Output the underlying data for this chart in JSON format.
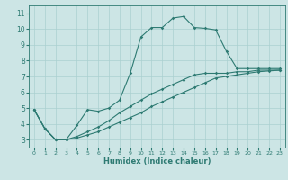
{
  "title": "",
  "xlabel": "Humidex (Indice chaleur)",
  "ylabel": "",
  "bg_color": "#cce5e5",
  "grid_color": "#aad0d0",
  "line_color": "#2d7a72",
  "xlim": [
    -0.5,
    23.5
  ],
  "ylim": [
    2.5,
    11.5
  ],
  "xticks": [
    0,
    1,
    2,
    3,
    4,
    5,
    6,
    7,
    8,
    9,
    10,
    11,
    12,
    13,
    14,
    15,
    16,
    17,
    18,
    19,
    20,
    21,
    22,
    23
  ],
  "yticks": [
    3,
    4,
    5,
    6,
    7,
    8,
    9,
    10,
    11
  ],
  "line1_x": [
    0,
    1,
    2,
    3,
    4,
    5,
    6,
    7,
    8,
    9,
    10,
    11,
    12,
    13,
    14,
    15,
    16,
    17,
    18,
    19,
    20,
    21,
    22,
    23
  ],
  "line1_y": [
    4.9,
    3.7,
    3.0,
    3.0,
    3.9,
    4.9,
    4.8,
    5.0,
    5.5,
    7.2,
    9.5,
    10.1,
    10.1,
    10.7,
    10.8,
    10.1,
    10.05,
    9.95,
    8.6,
    7.5,
    7.5,
    7.5,
    7.5,
    7.5
  ],
  "line2_x": [
    0,
    1,
    2,
    3,
    4,
    5,
    6,
    7,
    8,
    9,
    10,
    11,
    12,
    13,
    14,
    15,
    16,
    17,
    18,
    19,
    20,
    21,
    22,
    23
  ],
  "line2_y": [
    4.9,
    3.7,
    3.0,
    3.0,
    3.2,
    3.5,
    3.8,
    4.2,
    4.7,
    5.1,
    5.5,
    5.9,
    6.2,
    6.5,
    6.8,
    7.1,
    7.2,
    7.2,
    7.2,
    7.3,
    7.3,
    7.4,
    7.4,
    7.4
  ],
  "line3_x": [
    0,
    1,
    2,
    3,
    4,
    5,
    6,
    7,
    8,
    9,
    10,
    11,
    12,
    13,
    14,
    15,
    16,
    17,
    18,
    19,
    20,
    21,
    22,
    23
  ],
  "line3_y": [
    4.9,
    3.7,
    3.0,
    3.0,
    3.1,
    3.3,
    3.5,
    3.8,
    4.1,
    4.4,
    4.7,
    5.1,
    5.4,
    5.7,
    6.0,
    6.3,
    6.6,
    6.9,
    7.0,
    7.1,
    7.2,
    7.3,
    7.35,
    7.4
  ],
  "xlabel_fontsize": 6.0,
  "tick_fontsize_x": 4.5,
  "tick_fontsize_y": 5.5,
  "marker_size": 1.8,
  "linewidth": 0.8
}
